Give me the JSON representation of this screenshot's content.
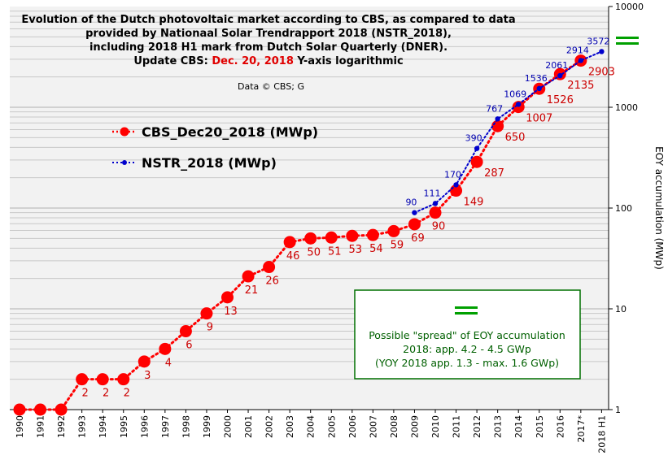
{
  "title": {
    "line1": "Evolution of the Dutch photovoltaic market according to CBS, as compared to data",
    "line2": "provided by Nationaal Solar Trendrapport 2018 (NSTR_2018),",
    "line3": "including 2018 H1 mark from Dutch Solar Quarterly (DNER).",
    "line4_a": "Update CBS: ",
    "line4_b": "Dec. 20, 2018",
    "line4_c": " Y-axis logarithmic"
  },
  "credit": "Data © CBS; G",
  "colors": {
    "cbs": "#ff0000",
    "nstr": "#0000cc",
    "note": "#007000",
    "grid": "#c8c8c8"
  },
  "note": {
    "icon": "double-green-bar-icon",
    "line1": "Possible \"spread\"  of EOY accumulation",
    "line2": "2018:  app. 4.2 - 4.5 GWp",
    "line3": "(YOY 2018 app. 1.3 - max. 1.6 GWp)"
  },
  "chart_data": {
    "type": "line",
    "yscale": "log",
    "ylim": [
      1,
      10000
    ],
    "ylabel": "EOY accumulation (MWp)",
    "yaxis_position": "right",
    "yticks": [
      "1",
      "10",
      "100",
      "1000",
      "10000"
    ],
    "categories": [
      "1990",
      "1991",
      "1992",
      "1993",
      "1994",
      "1995",
      "1996",
      "1997",
      "1998",
      "1999",
      "2000",
      "2001",
      "2002",
      "2003",
      "2004",
      "2005",
      "2006",
      "2007",
      "2008",
      "2009",
      "2010",
      "2011",
      "2012",
      "2013",
      "2014",
      "2015",
      "2016",
      "2017*",
      "2018 H1"
    ],
    "legend_position": "top-left",
    "series": [
      {
        "name": "CBS_Dec20_2018 (MWp)",
        "color": "#ff0000",
        "style": "dotted-markers",
        "values": [
          1,
          1,
          1,
          2,
          2,
          2,
          3,
          4,
          6,
          9,
          13,
          21,
          26,
          46,
          50,
          51,
          53,
          54,
          59,
          69,
          90,
          149,
          287,
          650,
          1007,
          1526,
          2135,
          2903,
          null
        ],
        "labels": [
          "",
          "",
          "",
          "2",
          "2",
          "2",
          "3",
          "4",
          "6",
          "9",
          "13",
          "21",
          "26",
          "46",
          "50",
          "51",
          "53",
          "54",
          "59",
          "69",
          "90",
          "149",
          "287",
          "650",
          "1007",
          "1526",
          "2135",
          "2903",
          ""
        ]
      },
      {
        "name": "NSTR_2018 (MWp)",
        "color": "#0000cc",
        "style": "dotted-small",
        "values": [
          null,
          null,
          null,
          null,
          null,
          null,
          null,
          null,
          null,
          null,
          null,
          null,
          null,
          null,
          null,
          null,
          null,
          null,
          null,
          90,
          111,
          170,
          390,
          767,
          1069,
          1536,
          2061,
          2914,
          3572
        ],
        "labels": [
          "",
          "",
          "",
          "",
          "",
          "",
          "",
          "",
          "",
          "",
          "",
          "",
          "",
          "",
          "",
          "",
          "",
          "",
          "",
          "90",
          "111",
          "170",
          "390",
          "767",
          "1069",
          "1536",
          "2061",
          "2914",
          "3572"
        ]
      }
    ],
    "annotation_range_2018": [
      4200,
      4500
    ]
  }
}
